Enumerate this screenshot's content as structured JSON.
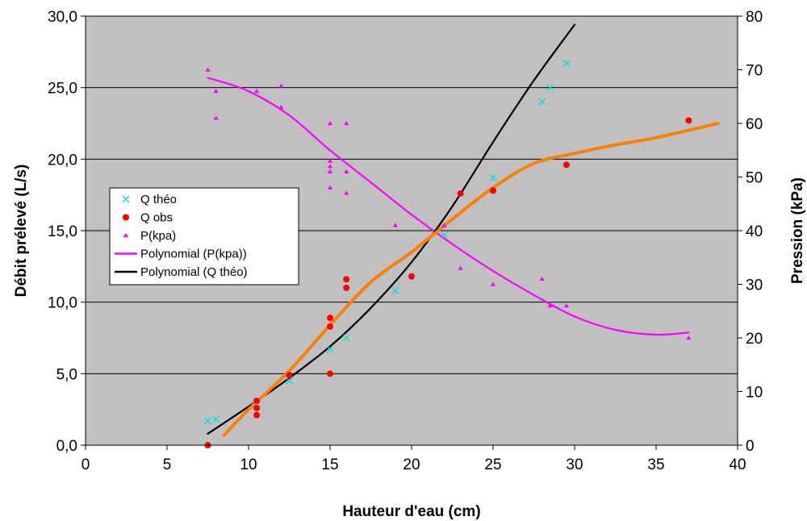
{
  "chart_data": {
    "type": "scatter",
    "xlabel": "Hauteur d'eau (cm)",
    "ylabel_left": "Débit prélevé (L/s)",
    "ylabel_right": "Pression (kPa)",
    "xlim": [
      0,
      40
    ],
    "ylim_left": [
      0,
      30
    ],
    "ylim_right": [
      0,
      80
    ],
    "x_ticks": [
      "0",
      "5",
      "10",
      "15",
      "20",
      "25",
      "30",
      "35",
      "40"
    ],
    "y_left_ticks": [
      "0,0",
      "5,0",
      "10,0",
      "15,0",
      "20,0",
      "25,0",
      "30,0"
    ],
    "y_right_ticks": [
      "0",
      "10",
      "20",
      "30",
      "40",
      "50",
      "60",
      "70",
      "80"
    ],
    "grid": true,
    "legend_position": "left-middle",
    "colors": {
      "plot_bg": "#c0c0c0",
      "q_theo": "#00e0e0",
      "q_obs": "#ff0000",
      "p_kpa": "#ff00ff",
      "poly_p": "#ff00ff",
      "poly_q_theo": "#000000",
      "orange_curve": "#ff7f00"
    },
    "series": [
      {
        "name": "Q théo",
        "marker": "x",
        "axis": "left",
        "points": [
          [
            7.5,
            1.7
          ],
          [
            8.0,
            1.8
          ],
          [
            10.5,
            3.0
          ],
          [
            12.5,
            4.5
          ],
          [
            15.0,
            6.7
          ],
          [
            16.0,
            7.5
          ],
          [
            19.0,
            10.8
          ],
          [
            22.0,
            14.7
          ],
          [
            25.0,
            18.7
          ],
          [
            28.0,
            24.0
          ],
          [
            28.5,
            25.0
          ],
          [
            29.5,
            26.7
          ]
        ]
      },
      {
        "name": "Q obs",
        "marker": "circle",
        "axis": "left",
        "points": [
          [
            7.5,
            0.0
          ],
          [
            10.5,
            2.1
          ],
          [
            10.5,
            2.6
          ],
          [
            10.5,
            3.1
          ],
          [
            12.5,
            4.9
          ],
          [
            15.0,
            5.0
          ],
          [
            15.0,
            8.3
          ],
          [
            15.0,
            8.9
          ],
          [
            16.0,
            11.0
          ],
          [
            16.0,
            11.6
          ],
          [
            20.0,
            11.8
          ],
          [
            23.0,
            17.6
          ],
          [
            25.0,
            17.8
          ],
          [
            29.5,
            19.6
          ],
          [
            37.0,
            22.7
          ]
        ]
      },
      {
        "name": "P(kpa)",
        "marker": "triangle",
        "axis": "right",
        "points": [
          [
            7.5,
            70
          ],
          [
            8.0,
            66
          ],
          [
            8.0,
            61
          ],
          [
            10.5,
            66
          ],
          [
            12.0,
            67
          ],
          [
            12.0,
            63
          ],
          [
            15.0,
            60
          ],
          [
            15.0,
            53
          ],
          [
            15.0,
            51
          ],
          [
            15.0,
            52
          ],
          [
            15.0,
            48
          ],
          [
            16.0,
            60
          ],
          [
            16.0,
            51
          ],
          [
            16.0,
            47
          ],
          [
            19.0,
            41
          ],
          [
            22.0,
            41
          ],
          [
            23.0,
            33
          ],
          [
            25.0,
            30
          ],
          [
            28.0,
            31
          ],
          [
            28.5,
            26
          ],
          [
            29.5,
            26
          ],
          [
            37.0,
            20
          ]
        ]
      },
      {
        "name": "Polynomial (P(kpa))",
        "type": "curve",
        "axis": "right",
        "points": [
          [
            7.5,
            68.5
          ],
          [
            10,
            66
          ],
          [
            12.5,
            61.5
          ],
          [
            15,
            55
          ],
          [
            17.5,
            49
          ],
          [
            20,
            43
          ],
          [
            22.5,
            37.5
          ],
          [
            25,
            32.5
          ],
          [
            27.5,
            28
          ],
          [
            30,
            24
          ],
          [
            32.5,
            21.5
          ],
          [
            35,
            20.6
          ],
          [
            37,
            21
          ]
        ]
      },
      {
        "name": "Polynomial (Q théo)",
        "type": "curve",
        "axis": "left",
        "points": [
          [
            7.5,
            0.8
          ],
          [
            10,
            2.7
          ],
          [
            12.5,
            4.7
          ],
          [
            15,
            6.9
          ],
          [
            17.5,
            9.6
          ],
          [
            20,
            12.8
          ],
          [
            22.5,
            16.7
          ],
          [
            25,
            21.2
          ],
          [
            27.5,
            25.5
          ],
          [
            30,
            29.4
          ]
        ]
      },
      {
        "type": "curve",
        "axis": "left",
        "points": [
          [
            8.5,
            0.7
          ],
          [
            10,
            2.5
          ],
          [
            12.5,
            5.2
          ],
          [
            15,
            8.4
          ],
          [
            17.5,
            11.4
          ],
          [
            20,
            13.5
          ],
          [
            22.5,
            15.8
          ],
          [
            25,
            18.0
          ],
          [
            27.5,
            19.7
          ],
          [
            30,
            20.4
          ],
          [
            32.5,
            21.0
          ],
          [
            35,
            21.5
          ],
          [
            38.8,
            22.5
          ]
        ]
      }
    ]
  }
}
